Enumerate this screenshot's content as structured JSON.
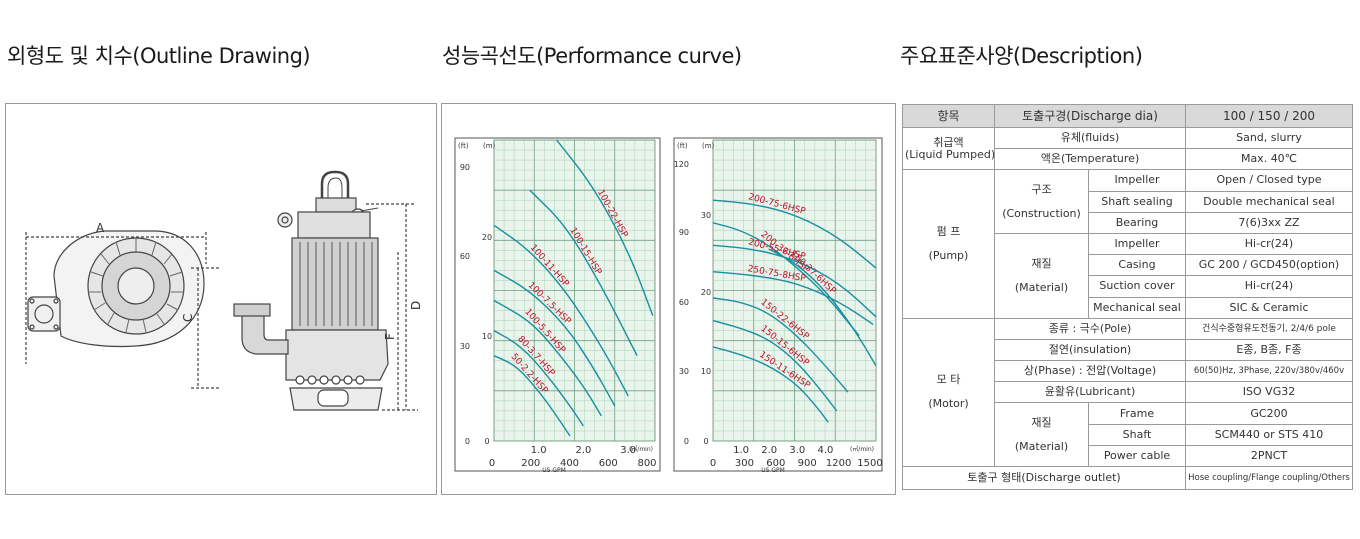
{
  "sections": {
    "outline": "외형도 및 치수(Outline Drawing)",
    "performance": "성능곡선도(Performance curve)",
    "description": "주요표준사양(Description)"
  },
  "drawing": {
    "labels": [
      "A",
      "C",
      "D",
      "F"
    ]
  },
  "chart_data": [
    {
      "type": "line",
      "title": "",
      "left_axis_units": [
        "(ft)",
        "(m)"
      ],
      "y_ft_ticks": [
        "90",
        "60",
        "30",
        "0"
      ],
      "y_m_ticks": [
        "20",
        "10",
        "0"
      ],
      "x_m3_ticks": [
        "1.0",
        "2.0",
        "3.0"
      ],
      "x_m3_unit": "(㎥/min)",
      "x_gpm_ticks": [
        "0",
        "200",
        "400",
        "600",
        "800"
      ],
      "x_gpm_unit": "US GPM",
      "x_range_m3": [
        0,
        3.6
      ],
      "y_range_m": [
        0,
        30
      ],
      "grid": true,
      "series": [
        {
          "name": "100-22-HSP",
          "x": [
            1.4,
            2.2,
            3.0,
            3.55
          ],
          "y": [
            30,
            25.5,
            19,
            12.5
          ]
        },
        {
          "name": "100-15-HSP",
          "x": [
            0.8,
            1.6,
            2.4,
            3.2
          ],
          "y": [
            25,
            21.5,
            15.5,
            8.5
          ]
        },
        {
          "name": "100-11-HSP",
          "x": [
            0.0,
            0.8,
            1.6,
            2.4,
            3.0
          ],
          "y": [
            21.5,
            19,
            15,
            9.5,
            4.5
          ]
        },
        {
          "name": "100-7.5-HSP",
          "x": [
            0.0,
            0.8,
            1.6,
            2.2,
            2.7
          ],
          "y": [
            17,
            15,
            11.5,
            7.5,
            3.5
          ]
        },
        {
          "name": "100-5.5-HSP",
          "x": [
            0.0,
            0.8,
            1.4,
            2.0,
            2.4
          ],
          "y": [
            14,
            12,
            9,
            5.5,
            2.5
          ]
        },
        {
          "name": "80-3.7-HSP",
          "x": [
            0.0,
            0.6,
            1.2,
            1.7,
            2.0
          ],
          "y": [
            11,
            9.5,
            6.5,
            3.5,
            1.5
          ]
        },
        {
          "name": "50-2.2-HSP",
          "x": [
            0.0,
            0.5,
            1.0,
            1.4,
            1.7
          ],
          "y": [
            8.5,
            7.5,
            5,
            2.5,
            0.5
          ]
        }
      ]
    },
    {
      "type": "line",
      "title": "",
      "left_axis_units": [
        "(ft)",
        "(m)"
      ],
      "y_ft_ticks": [
        "120",
        "90",
        "60",
        "30",
        "0"
      ],
      "y_m_ticks": [
        "30",
        "20",
        "10",
        "0"
      ],
      "x_m3_ticks": [
        "1.0",
        "2.0",
        "3.0",
        "4.0"
      ],
      "x_m3_unit": "(㎥/min)",
      "x_gpm_ticks": [
        "0",
        "300",
        "600",
        "900",
        "1200",
        "1500"
      ],
      "x_gpm_unit": "US GPM",
      "x_range_m3": [
        0,
        5.8
      ],
      "y_range_m": [
        0,
        40
      ],
      "grid": true,
      "series": [
        {
          "name": "200-75-6HSP",
          "x": [
            0.0,
            1.5,
            3.0,
            4.5,
            5.8
          ],
          "y": [
            32,
            31.5,
            30,
            27,
            23
          ]
        },
        {
          "name": "200-37-6HSP",
          "x": [
            0.0,
            1.0,
            2.0,
            3.0,
            4.0,
            5.2
          ],
          "y": [
            29,
            28,
            26,
            23,
            19.5,
            14
          ]
        },
        {
          "name": "200-55-6HSP",
          "x": [
            0.0,
            1.5,
            3.0,
            4.5,
            5.8
          ],
          "y": [
            26,
            25.5,
            24,
            21,
            16.5
          ]
        },
        {
          "name": "250-75-8HSP",
          "x": [
            0.0,
            1.5,
            3.0,
            4.5,
            5.7
          ],
          "y": [
            22.5,
            22,
            21,
            18.5,
            15.5
          ]
        },
        {
          "name": "150-37-6HSP",
          "x": [
            2.0,
            3.0,
            4.0,
            5.0,
            5.8
          ],
          "y": [
            25.5,
            23.5,
            20,
            15,
            10
          ]
        },
        {
          "name": "150-22-6HSP",
          "x": [
            0.0,
            1.0,
            2.0,
            3.0,
            4.0,
            4.8
          ],
          "y": [
            19,
            18.5,
            17,
            14,
            10,
            6.5
          ]
        },
        {
          "name": "150-15-6HSP",
          "x": [
            0.0,
            1.0,
            2.0,
            3.0,
            4.0,
            4.4
          ],
          "y": [
            16,
            15,
            13.5,
            10.5,
            6,
            4
          ]
        },
        {
          "name": "150-11-6HSP",
          "x": [
            0.0,
            1.0,
            2.0,
            3.0,
            3.7,
            4.1
          ],
          "y": [
            12.5,
            11.5,
            10,
            7.5,
            4.5,
            2.5
          ]
        }
      ]
    }
  ],
  "spec": {
    "head": [
      "항목",
      "토출구경(Discharge dia)",
      "100 / 150 / 200"
    ],
    "liquid": {
      "label1": "취급액",
      "label2": "(Liquid Pumped)",
      "rows": [
        {
          "item": "유체(fluids)",
          "value": "Sand, slurry"
        },
        {
          "item": "액온(Temperature)",
          "value": "Max. 40℃"
        }
      ]
    },
    "pump": {
      "label1": "펌 프",
      "label2": "(Pump)",
      "construction": {
        "label1": "구조",
        "label2": "(Construction)",
        "rows": [
          {
            "item": "Impeller",
            "value": "Open / Closed type"
          },
          {
            "item": "Shaft sealing",
            "value": "Double mechanical seal"
          },
          {
            "item": "Bearing",
            "value": "7(6)3xx ZZ"
          }
        ]
      },
      "material": {
        "label1": "재질",
        "label2": "(Material)",
        "rows": [
          {
            "item": "Impeller",
            "value": "Hi-cr(24)"
          },
          {
            "item": "Casing",
            "value": "GC 200 / GCD450(option)"
          },
          {
            "item": "Suction cover",
            "value": "Hi-cr(24)"
          },
          {
            "item": "Mechanical seal",
            "value": "SIC & Ceramic"
          }
        ]
      }
    },
    "motor": {
      "label1": "모 타",
      "label2": "(Motor)",
      "rows": [
        {
          "item": "종류 : 극수(Pole)",
          "value": "건식수중형유도전동기, 2/4/6 pole"
        },
        {
          "item": "절연(insulation)",
          "value": "E종, B종, F종"
        },
        {
          "item": "상(Phase) : 전압(Voltage)",
          "value": "60(50)Hz, 3Phase, 220v/380v/460v"
        },
        {
          "item": "윤활유(Lubricant)",
          "value": "ISO VG32"
        }
      ],
      "material": {
        "label1": "재질",
        "label2": "(Material)",
        "rows": [
          {
            "item": "Frame",
            "value": "GC200"
          },
          {
            "item": "Shaft",
            "value": "SCM440 or STS 410"
          },
          {
            "item": "Power cable",
            "value": "2PNCT"
          }
        ]
      }
    },
    "outlet": {
      "item": "토출구 형태(Discharge outlet)",
      "value": "Hose coupling/Flange coupling/Others"
    }
  }
}
